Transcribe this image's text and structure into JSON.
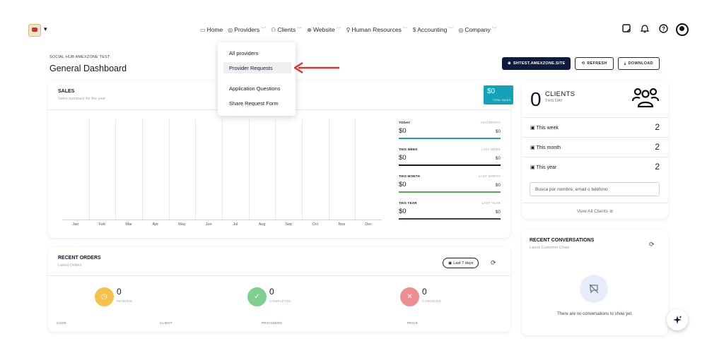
{
  "nav": {
    "items": [
      {
        "label": "Home",
        "icon": "monitor-icon"
      },
      {
        "label": "Providers",
        "icon": "providers-icon"
      },
      {
        "label": "Clients",
        "icon": "clients-icon"
      },
      {
        "label": "Website",
        "icon": "globe-icon"
      },
      {
        "label": "Human Resources",
        "icon": "hr-icon"
      },
      {
        "label": "Accounting",
        "icon": "dollar-icon"
      },
      {
        "label": "Company",
        "icon": "company-icon"
      }
    ]
  },
  "header": {
    "subtitle": "SOCIAL HUB AMEXZONE TEST",
    "title": "General Dashboard",
    "site_button": "SHTEST.AMEXZONE.SITE",
    "refresh_button": "REFRESH",
    "download_button": "DOWNLOAD"
  },
  "dropdown": {
    "items": [
      "All providers",
      "Provider Requests",
      "Application Questions",
      "Share Request Form"
    ],
    "active": "Provider Requests"
  },
  "sales": {
    "title": "SALES",
    "subtitle": "Sales summary for the year.",
    "total_value": "$0",
    "total_label": "TOTAL SALES",
    "months": [
      "Jan",
      "Feb",
      "Mar",
      "Apr",
      "May",
      "Jun",
      "Jul",
      "Aug",
      "Sep",
      "Oct",
      "Nov",
      "Dec"
    ],
    "stats": [
      {
        "label": "TODAY",
        "prev_label": "YESTERDAY",
        "value": "$0",
        "prev_value": "$0",
        "color": "#14a2b8"
      },
      {
        "label": "THIS WEEK",
        "prev_label": "LAST WEEK",
        "value": "$0",
        "prev_value": "$0",
        "color": "#0f1b3d"
      },
      {
        "label": "THIS MONTH",
        "prev_label": "LAST MONTH",
        "value": "$0",
        "prev_value": "$0",
        "color": "#4caf50"
      },
      {
        "label": "THIS YEAR",
        "prev_label": "LAST YEAR",
        "value": "$0",
        "prev_value": "$0",
        "color": "#374151"
      }
    ]
  },
  "clients": {
    "count": "0",
    "label": "CLIENTS",
    "sub": "THIS DAY",
    "rows": [
      {
        "label": "This week",
        "value": "2"
      },
      {
        "label": "This month",
        "value": "2"
      },
      {
        "label": "This year",
        "value": "2"
      }
    ],
    "search_placeholder": "Busca por nombre, email o teléfono",
    "view_all": "View All Clients"
  },
  "orders": {
    "title": "RECENT ORDERS",
    "subtitle": "Latest Orders",
    "range_button": "Last 7 days",
    "stats": [
      {
        "value": "0",
        "label": "PENDING",
        "color": "#f6c14b"
      },
      {
        "value": "0",
        "label": "COMPLETED",
        "color": "#7fcf8e"
      },
      {
        "value": "0",
        "label": "CANCELED",
        "color": "#ef8e8e"
      }
    ],
    "columns": [
      "CODE",
      "CLIENT",
      "PROVIDERS",
      "PRICE"
    ]
  },
  "conversations": {
    "title": "RECENT CONVERSATIONS",
    "subtitle": "Latest Customer Chats",
    "empty": "There are no conversations to show yet."
  }
}
